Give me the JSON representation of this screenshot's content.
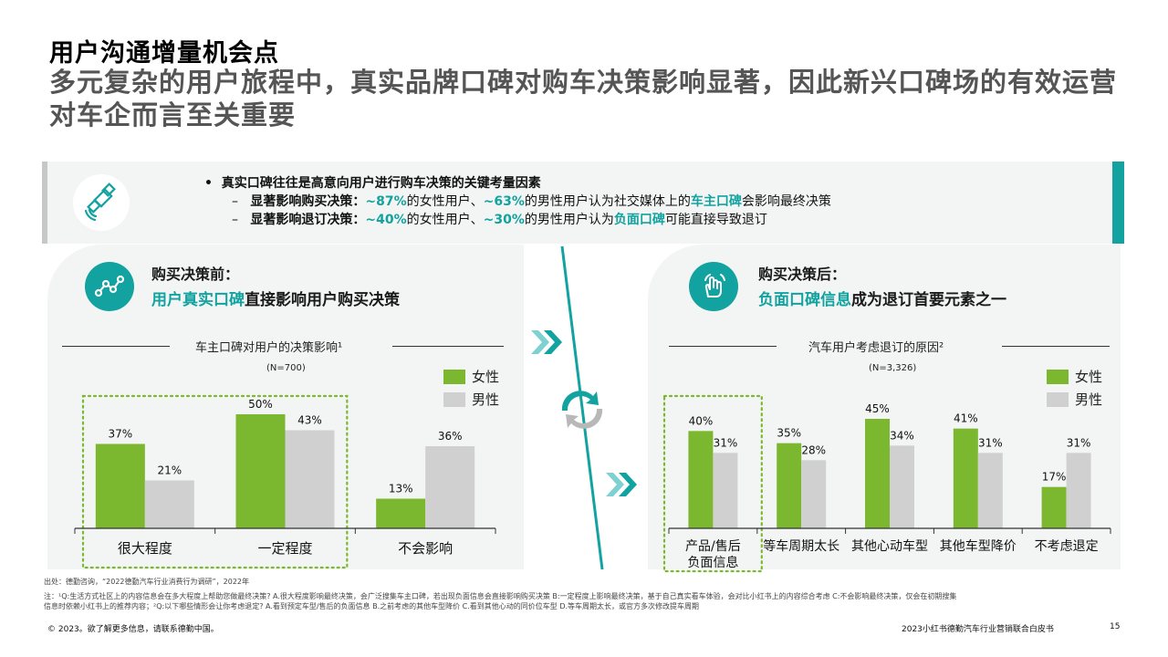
{
  "header": {
    "title": "用户沟通增量机会点",
    "subtitle": "多元复杂的用户旅程中，真实品牌口碑对购车决策影响显著，因此新兴口碑场的有效运营对车企而言至关重要"
  },
  "callout": {
    "bullet": "真实口碑往往是高意向用户进行购车决策的关键考量因素",
    "line1": {
      "label": "显著影响购买决策：",
      "v1": "~87%",
      "t1": "的女性用户、",
      "v2": "~63%",
      "t2": "的男性用户认为社交媒体上的",
      "kw": "车主口碑",
      "t3": "会影响最终决策"
    },
    "line2": {
      "label": "显著影响退订决策：",
      "v1": "~40%",
      "t1": "的女性用户、",
      "v2": "~30%",
      "t2": "的男性用户认为",
      "kw": "负面口碑",
      "t3": "可能直接导致退订"
    }
  },
  "left_panel": {
    "heading": "购买决策前：",
    "sub_em": "用户真实口碑",
    "sub_rest": "直接影响用户购买决策",
    "chart_title": "车主口碑对用户的决策影响¹",
    "n": "(N=700)"
  },
  "right_panel": {
    "heading": "购买决策后：",
    "sub_em": "负面口碑信息",
    "sub_rest": "成为退订首要元素之一",
    "chart_title": "汽车用户考虑退订的原因²",
    "n": "(N=3,326)"
  },
  "legend": {
    "female": "女性",
    "male": "男性"
  },
  "colors": {
    "female": "#7cb82f",
    "male": "#d0d0d0",
    "accent": "#12a2a0",
    "highlight": "#7cb82f"
  },
  "chart_data": [
    {
      "type": "bar",
      "title": "车主口碑对用户的决策影响¹",
      "categories": [
        "很大程度",
        "一定程度",
        "不会影响"
      ],
      "series": [
        {
          "name": "女性",
          "values": [
            37,
            50,
            13
          ]
        },
        {
          "name": "男性",
          "values": [
            21,
            43,
            36
          ]
        }
      ],
      "ylim": [
        0,
        60
      ],
      "highlighted_categories": [
        "很大程度",
        "一定程度"
      ]
    },
    {
      "type": "bar",
      "title": "汽车用户考虑退订的原因²",
      "categories": [
        "产品/售后负面信息",
        "等车周期太长",
        "其他心动车型",
        "其他车型降价",
        "不考虑退定"
      ],
      "series": [
        {
          "name": "女性",
          "values": [
            40,
            35,
            45,
            41,
            17
          ]
        },
        {
          "name": "男性",
          "values": [
            31,
            28,
            34,
            31,
            31
          ]
        }
      ],
      "ylim": [
        0,
        56
      ],
      "highlighted_categories": [
        "产品/售后负面信息"
      ]
    }
  ],
  "footer": {
    "source": "出处：德勤咨询，“2022德勤汽车行业消费行为调研”，2022年",
    "note1": "注：¹Q:生活方式社区上的内容信息会在多大程度上帮助您做最终决策? A.很大程度影响最终决策，会广泛搜集车主口碑，若出现负面信息会直接影响购买决策 B:一定程度上影响最终决策，基于自己真实看车体验，会对比小红书上的内容综合考虑 C:不会影响最终决策，仅会在初期搜集",
    "note2": "信息时依赖小红书上的推荐内容；²Q:以下哪些情形会让你考虑退定? A.看到预定车型/售后的负面信息 B.之前考虑的其他车型降价 C.看到其他心动的同价位车型 D.等车周期太长，或官方多次修改提车周期",
    "copyright": "© 2023。欲了解更多信息，请联系德勤中国。",
    "report": "2023小红书德勤汽车行业营销联合白皮书",
    "page": "15"
  }
}
